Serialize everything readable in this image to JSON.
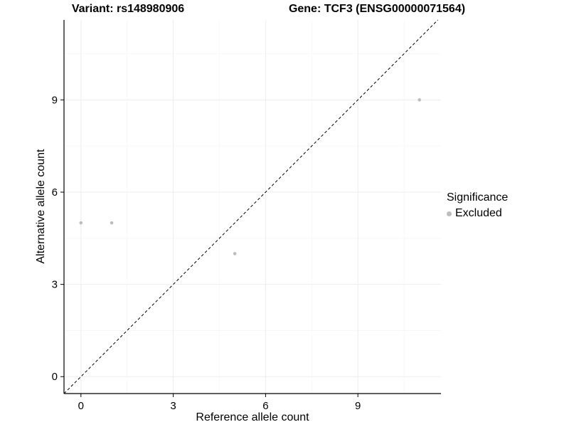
{
  "figure": {
    "title_left": "Variant: rs148980906",
    "title_right": "Gene: TCF3 (ENSG00000071564)"
  },
  "chart_data": {
    "type": "scatter",
    "title": "Variant: rs148980906 — Gene: TCF3 (ENSG00000071564)",
    "xlabel": "Reference allele count",
    "ylabel": "Alternative allele count",
    "xticks": [
      0,
      3,
      6,
      9
    ],
    "yticks": [
      0,
      3,
      6,
      9
    ],
    "xlim": [
      -0.55,
      11.7
    ],
    "ylim": [
      -0.55,
      11.6
    ],
    "grid": true,
    "background": "#ffffff",
    "identity_line": {
      "style": "dashed",
      "slope": 1,
      "intercept": 0,
      "color": "#000000"
    },
    "series": [
      {
        "name": "Excluded",
        "color": "#bdbdbd",
        "points": [
          [
            0,
            5
          ],
          [
            1,
            5
          ],
          [
            5,
            4
          ],
          [
            11,
            9
          ]
        ]
      }
    ],
    "legend": {
      "title": "Significance",
      "position": "right",
      "items": [
        {
          "label": "Excluded",
          "color": "#bdbdbd"
        }
      ]
    }
  }
}
